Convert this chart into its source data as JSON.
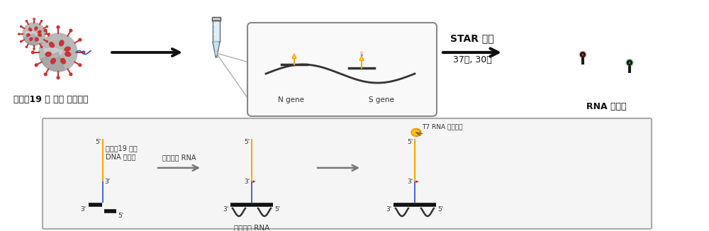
{
  "bg_color": "#ffffff",
  "text_corona": "코로나19 및 변이 바이러스",
  "text_rna_aptamer": "RNA 압타머",
  "text_star": "STAR 기술",
  "text_condition": "37도, 30분",
  "text_ngene": "N gene",
  "text_sgene": "S gene",
  "text_probe_label1": "코로나19 검출",
  "text_probe_label2": "DNA 프로브",
  "text_virus_rna1": "바이러스 RNA",
  "text_virus_rna2": "바이러스 RNA",
  "text_t7": "T7 RNA 중합효소",
  "label_5p": "5'",
  "label_3p": "3'",
  "probe_yellow": "#FFA500",
  "probe_blue": "#4169E1",
  "red_triangle": "#CC0000",
  "virus_gray": "#b0b0b0",
  "virus_red": "#CC3333"
}
